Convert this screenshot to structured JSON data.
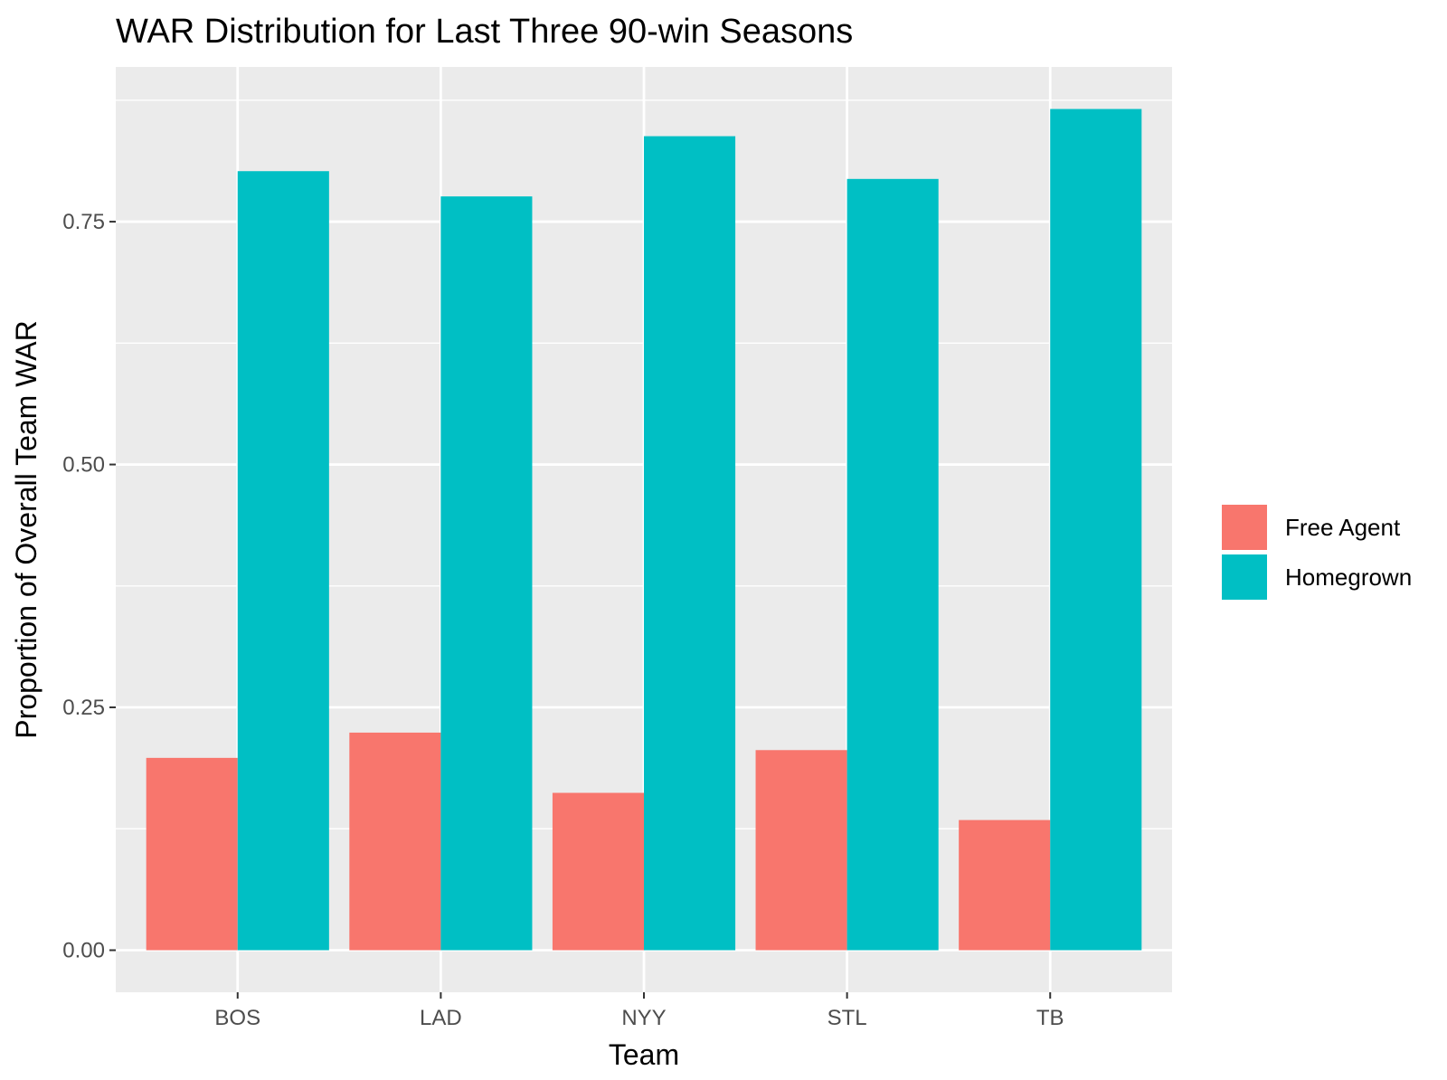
{
  "chart_data": {
    "type": "bar",
    "title": "WAR Distribution for Last Three 90-win Seasons",
    "xlabel": "Team",
    "ylabel": "Proportion of Overall Team WAR",
    "categories": [
      "BOS",
      "LAD",
      "NYY",
      "STL",
      "TB"
    ],
    "series": [
      {
        "name": "Free Agent",
        "color": "#F8766D",
        "values": [
          0.198,
          0.224,
          0.162,
          0.206,
          0.134
        ]
      },
      {
        "name": "Homegrown",
        "color": "#00BFC4",
        "values": [
          0.802,
          0.776,
          0.838,
          0.794,
          0.866
        ]
      }
    ],
    "ylim": [
      -0.0433,
      0.9093
    ],
    "yticks": [
      0.0,
      0.25,
      0.5,
      0.75
    ],
    "ytick_labels": [
      "0.00",
      "0.25",
      "0.50",
      "0.75"
    ],
    "grid": true,
    "legend": "right",
    "colors": {
      "panel_background": "#EBEBEB",
      "grid_line": "#FFFFFF",
      "free_agent": "#F8766D",
      "homegrown": "#00BFC4"
    }
  }
}
